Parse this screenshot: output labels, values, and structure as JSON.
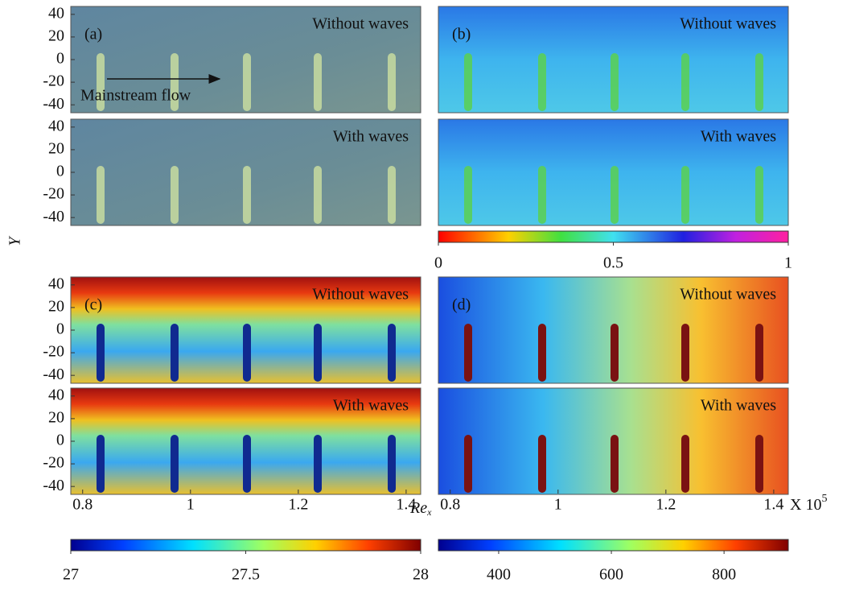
{
  "y_axis": {
    "label": "Y",
    "ticks": [
      40,
      20,
      0,
      -20,
      -40
    ],
    "ylim": [
      -47,
      47
    ]
  },
  "x_axis": {
    "label": "Re",
    "label_sub": "x",
    "ticks": [
      0.8,
      1,
      1.2,
      1.4
    ],
    "xlim": [
      0.778,
      1.427
    ],
    "multiplier": "X 10",
    "multiplier_exp": "5"
  },
  "annotation": "Mainstream flow",
  "panels": [
    {
      "tag": "(a)",
      "rows": [
        "Without waves",
        "With waves"
      ]
    },
    {
      "tag": "(b)",
      "rows": [
        "Without waves",
        "With waves"
      ]
    },
    {
      "tag": "(c)",
      "rows": [
        "Without waves",
        "With waves"
      ]
    },
    {
      "tag": "(d)",
      "rows": [
        "Without waves",
        "With waves"
      ]
    }
  ],
  "colorbars": [
    {
      "ticks": [
        0,
        0.5,
        1
      ],
      "lim": [
        0,
        1
      ]
    },
    {
      "ticks": [
        27,
        27.5,
        28
      ],
      "lim": [
        27,
        28
      ]
    },
    {
      "ticks": [
        400,
        600,
        800
      ],
      "lim": [
        293,
        914
      ]
    }
  ]
}
